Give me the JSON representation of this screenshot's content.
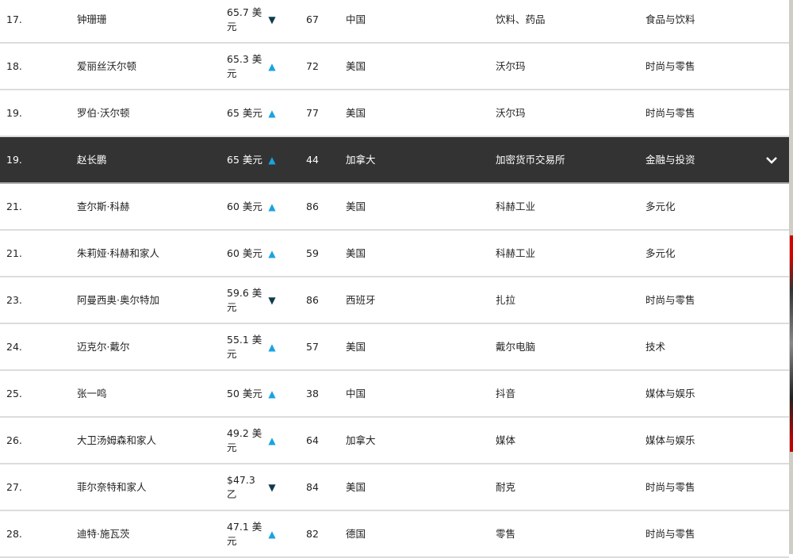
{
  "rows": [
    {
      "rank": "17.",
      "name": "钟珊珊",
      "worth": "65.7 美元",
      "trend": "down",
      "age": "67",
      "country": "中国",
      "source": "饮料、药品",
      "industry": "食品与饮料"
    },
    {
      "rank": "18.",
      "name": "爱丽丝沃尔顿",
      "worth": "65.3 美元",
      "trend": "up",
      "age": "72",
      "country": "美国",
      "source": "沃尔玛",
      "industry": "时尚与零售"
    },
    {
      "rank": "19.",
      "name": "罗伯·沃尔顿",
      "worth": "65 美元",
      "trend": "up",
      "age": "77",
      "country": "美国",
      "source": "沃尔玛",
      "industry": "时尚与零售"
    },
    {
      "rank": "19.",
      "name": "赵长鹏",
      "worth": "65 美元",
      "trend": "up",
      "age": "44",
      "country": "加拿大",
      "source": "加密货币交易所",
      "industry": "金融与投资",
      "highlighted": true
    },
    {
      "rank": "21.",
      "name": "查尔斯·科赫",
      "worth": "60 美元",
      "trend": "up",
      "age": "86",
      "country": "美国",
      "source": "科赫工业",
      "industry": "多元化"
    },
    {
      "rank": "21.",
      "name": "朱莉娅·科赫和家人",
      "worth": "60 美元",
      "trend": "up",
      "age": "59",
      "country": "美国",
      "source": "科赫工业",
      "industry": "多元化"
    },
    {
      "rank": "23.",
      "name": "阿曼西奥·奥尔特加",
      "worth": "59.6 美元",
      "trend": "down",
      "age": "86",
      "country": "西班牙",
      "source": "扎拉",
      "industry": "时尚与零售"
    },
    {
      "rank": "24.",
      "name": "迈克尔·戴尔",
      "worth": "55.1 美元",
      "trend": "up",
      "age": "57",
      "country": "美国",
      "source": "戴尔电脑",
      "industry": "技术"
    },
    {
      "rank": "25.",
      "name": "张一鸣",
      "worth": "50 美元",
      "trend": "up",
      "age": "38",
      "country": "中国",
      "source": "抖音",
      "industry": "媒体与娱乐"
    },
    {
      "rank": "26.",
      "name": "大卫汤姆森和家人",
      "worth": "49.2 美元",
      "trend": "up",
      "age": "64",
      "country": "加拿大",
      "source": "媒体",
      "industry": "媒体与娱乐"
    },
    {
      "rank": "27.",
      "name": "菲尔奈特和家人",
      "worth": "$47.3 乙",
      "trend": "down",
      "age": "84",
      "country": "美国",
      "source": "耐克",
      "industry": "时尚与零售"
    },
    {
      "rank": "28.",
      "name": "迪特·施瓦茨",
      "worth": "47.1 美元",
      "trend": "up",
      "age": "82",
      "country": "德国",
      "source": "零售",
      "industry": "时尚与零售"
    }
  ],
  "icons": {
    "up": "triangle-up-icon",
    "down": "triangle-down-icon",
    "expand": "chevron-down-icon"
  },
  "colors": {
    "up": "#1aa3e0",
    "down": "#0f3a4d",
    "highlight": "#333333"
  }
}
